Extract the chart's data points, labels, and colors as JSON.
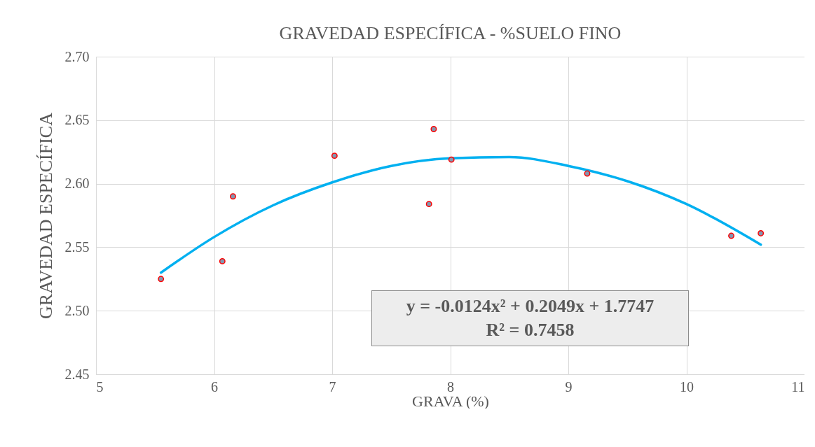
{
  "chart_data": {
    "type": "scatter",
    "title": "GRAVEDAD ESPECÍFICA - %SUELO FINO",
    "xlabel": "GRAVA (%)",
    "ylabel": "GRAVEDAD ESPECÍFICA",
    "x": [
      5.55,
      6.07,
      6.16,
      7.02,
      7.82,
      7.86,
      8.01,
      9.16,
      10.38,
      10.63
    ],
    "series": [
      {
        "type": "scatter",
        "color": "#8497b0",
        "marker": "circle",
        "values": [
          2.525,
          2.539,
          2.59,
          2.622,
          2.584,
          2.643,
          2.619,
          2.608,
          2.559,
          2.561
        ]
      },
      {
        "type": "line",
        "color": "#00b0f0",
        "marker": "none",
        "x": [
          5.55,
          6,
          6.5,
          7,
          7.5,
          8,
          8.5,
          9,
          9.5,
          10,
          10.63
        ],
        "values": [
          2.53,
          2.558,
          2.583,
          2.601,
          2.614,
          2.62,
          2.621,
          2.614,
          2.602,
          2.584,
          2.552
        ]
      }
    ],
    "annotations": [
      "y = -0.0124x² + 0.2049x + 1.7747\nR² = 0.7458"
    ],
    "xlim": [
      5,
      11
    ],
    "xticks": [
      5,
      6,
      7,
      8,
      9,
      10,
      11
    ],
    "ylim": [
      2.45,
      2.7
    ],
    "yticks": [
      {
        "value": 2.45,
        "label": "2.45"
      },
      {
        "value": 2.5,
        "label": "2.50"
      },
      {
        "value": 2.55,
        "label": "2.55"
      },
      {
        "value": 2.6,
        "label": "2.60"
      },
      {
        "value": 2.65,
        "label": "2.65"
      },
      {
        "value": 2.7,
        "label": "2.70"
      }
    ],
    "grid": true
  }
}
